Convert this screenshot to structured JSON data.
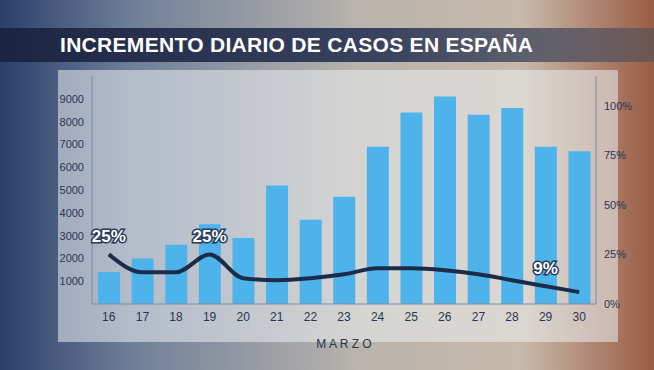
{
  "chart_data": {
    "type": "bar",
    "title": "INCREMENTO DIARIO DE CASOS EN ESPAÑA",
    "x_label": "M A R Z O",
    "categories": [
      "16",
      "17",
      "18",
      "19",
      "20",
      "21",
      "22",
      "23",
      "24",
      "25",
      "26",
      "27",
      "28",
      "29",
      "30"
    ],
    "series": [
      {
        "type": "bar",
        "color": "#4db3ea",
        "values": [
          1400,
          2000,
          2600,
          3500,
          2900,
          5200,
          3700,
          4700,
          6900,
          8400,
          9100,
          8300,
          8600,
          6900,
          6700
        ]
      },
      {
        "type": "line",
        "axis": "y2",
        "color": "#1c2b4a",
        "values": [
          25,
          16,
          16,
          25,
          13,
          12,
          13,
          15,
          18,
          18,
          17,
          15,
          12,
          9,
          6
        ],
        "data_labels": true,
        "value_labels": [
          "25%",
          null,
          null,
          "25%",
          null,
          null,
          null,
          null,
          null,
          null,
          null,
          null,
          null,
          "9%",
          null
        ]
      }
    ],
    "ylim": [
      0,
      10000
    ],
    "yticks": [
      1000,
      2000,
      3000,
      4000,
      5000,
      6000,
      7000,
      8000,
      9000
    ],
    "y2lim": [
      0,
      115
    ],
    "y2ticks": [
      {
        "value": 0,
        "label": "0%"
      },
      {
        "value": 25,
        "label": "25%"
      },
      {
        "value": 50,
        "label": "50%"
      },
      {
        "value": 75,
        "label": "75%"
      },
      {
        "value": 100,
        "label": "100%"
      }
    ],
    "grid": false
  }
}
